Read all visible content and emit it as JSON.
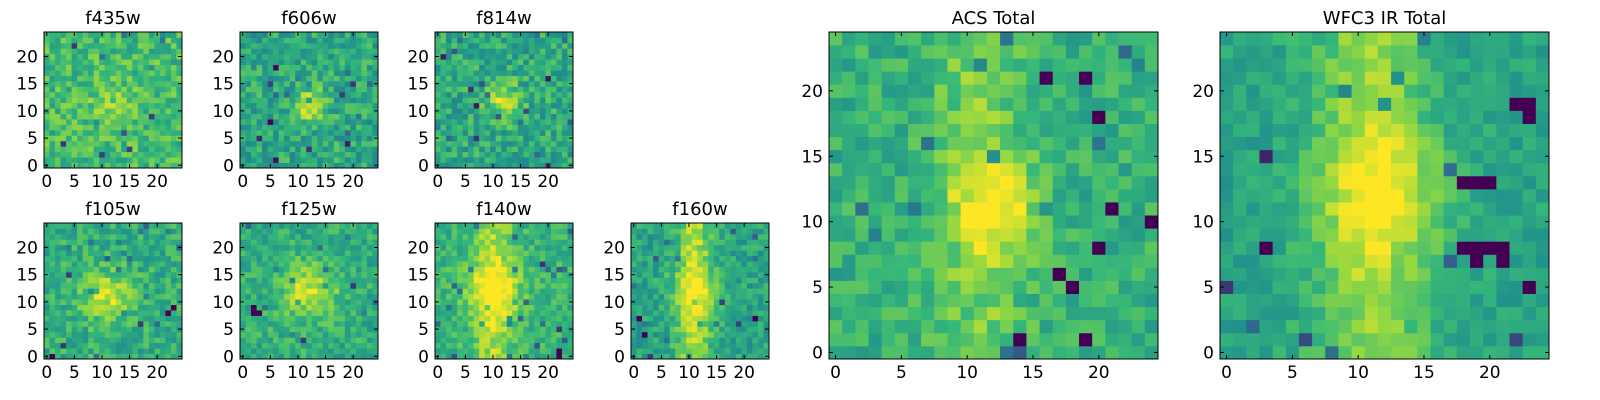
{
  "figure": {
    "colormap": "viridis",
    "colormap_stops": [
      "#440154",
      "#31688e",
      "#21918c",
      "#35b779",
      "#90d743",
      "#fde725"
    ]
  },
  "chart_data": [
    {
      "type": "heatmap",
      "title": "f435w",
      "grid": [
        25,
        25
      ],
      "xticks": [
        "0",
        "5",
        "10",
        "15",
        "20"
      ],
      "yticks": [
        "0",
        "5",
        "10",
        "15",
        "20"
      ],
      "xlim": [
        0,
        25
      ],
      "ylim": [
        0,
        25
      ],
      "seed": 11,
      "peak": {
        "x": 12,
        "y": 11,
        "sigma": 3.0,
        "amp": 0.15
      },
      "streak": null,
      "base": 0.62,
      "noise": 0.17,
      "holes": []
    },
    {
      "type": "heatmap",
      "title": "f606w",
      "grid": [
        25,
        25
      ],
      "xticks": [
        "0",
        "5",
        "10",
        "15",
        "20"
      ],
      "yticks": [
        "0",
        "5",
        "10",
        "15",
        "20"
      ],
      "xlim": [
        0,
        25
      ],
      "ylim": [
        0,
        25
      ],
      "seed": 23,
      "peak": {
        "x": 12,
        "y": 11,
        "sigma": 2.2,
        "amp": 0.35
      },
      "streak": null,
      "base": 0.52,
      "noise": 0.18,
      "holes": []
    },
    {
      "type": "heatmap",
      "title": "f814w",
      "grid": [
        25,
        25
      ],
      "xticks": [
        "0",
        "5",
        "10",
        "15",
        "20"
      ],
      "yticks": [
        "0",
        "5",
        "10",
        "15",
        "20"
      ],
      "xlim": [
        0,
        25
      ],
      "ylim": [
        0,
        25
      ],
      "seed": 37,
      "peak": {
        "x": 12,
        "y": 12,
        "sigma": 2.4,
        "amp": 0.35
      },
      "streak": null,
      "base": 0.52,
      "noise": 0.18,
      "holes": []
    },
    {
      "type": "heatmap",
      "title": "f105w",
      "grid": [
        25,
        25
      ],
      "xticks": [
        "0",
        "5",
        "10",
        "15",
        "20"
      ],
      "yticks": [
        "0",
        "5",
        "10",
        "15",
        "20"
      ],
      "xlim": [
        0,
        25
      ],
      "ylim": [
        0,
        25
      ],
      "seed": 41,
      "peak": {
        "x": 11,
        "y": 11,
        "sigma": 3.2,
        "amp": 0.35
      },
      "streak": null,
      "base": 0.55,
      "noise": 0.15,
      "holes": [
        [
          22,
          8
        ],
        [
          23,
          9
        ],
        [
          1,
          0
        ]
      ]
    },
    {
      "type": "heatmap",
      "title": "f125w",
      "grid": [
        25,
        25
      ],
      "xticks": [
        "0",
        "5",
        "10",
        "15",
        "20"
      ],
      "yticks": [
        "0",
        "5",
        "10",
        "15",
        "20"
      ],
      "xlim": [
        0,
        25
      ],
      "ylim": [
        0,
        25
      ],
      "seed": 53,
      "peak": {
        "x": 12,
        "y": 12,
        "sigma": 3.5,
        "amp": 0.35
      },
      "streak": null,
      "base": 0.55,
      "noise": 0.14,
      "holes": [
        [
          2,
          9
        ],
        [
          3,
          8
        ],
        [
          2,
          8
        ]
      ]
    },
    {
      "type": "heatmap",
      "title": "f140w",
      "grid": [
        25,
        25
      ],
      "xticks": [
        "0",
        "5",
        "10",
        "15",
        "20"
      ],
      "yticks": [
        "0",
        "5",
        "10",
        "15",
        "20"
      ],
      "xlim": [
        0,
        25
      ],
      "ylim": [
        0,
        25
      ],
      "seed": 67,
      "peak": {
        "x": 10,
        "y": 12,
        "sigma": 3.5,
        "amp": 0.35
      },
      "streak": {
        "x": 10,
        "width": 2.5,
        "amp": 0.25
      },
      "base": 0.58,
      "noise": 0.13,
      "holes": [
        [
          22,
          1
        ],
        [
          22,
          0
        ]
      ]
    },
    {
      "type": "heatmap",
      "title": "f160w",
      "grid": [
        25,
        25
      ],
      "xticks": [
        "0",
        "5",
        "10",
        "15",
        "20"
      ],
      "yticks": [
        "0",
        "5",
        "10",
        "15",
        "20"
      ],
      "xlim": [
        0,
        25
      ],
      "ylim": [
        0,
        25
      ],
      "seed": 79,
      "peak": {
        "x": 11,
        "y": 12,
        "sigma": 3.0,
        "amp": 0.25
      },
      "streak": {
        "x": 11,
        "width": 2.2,
        "amp": 0.35
      },
      "base": 0.5,
      "noise": 0.14,
      "holes": [
        [
          1,
          7
        ],
        [
          2,
          4
        ],
        [
          22,
          7
        ]
      ]
    },
    {
      "type": "heatmap",
      "title": "ACS Total",
      "grid": [
        25,
        25
      ],
      "xticks": [
        "0",
        "5",
        "10",
        "15",
        "20"
      ],
      "yticks": [
        "0",
        "5",
        "10",
        "15",
        "20"
      ],
      "xlim": [
        0,
        25
      ],
      "ylim": [
        0,
        25
      ],
      "seed": 97,
      "peak": {
        "x": 12,
        "y": 11,
        "sigma": 2.3,
        "amp": 0.38
      },
      "streak": {
        "x": 11,
        "width": 2.5,
        "amp": 0.18
      },
      "base": 0.56,
      "noise": 0.13,
      "holes": [
        [
          16,
          21
        ],
        [
          19,
          21
        ],
        [
          20,
          18
        ],
        [
          21,
          11
        ],
        [
          24,
          10
        ],
        [
          20,
          8
        ],
        [
          17,
          6
        ],
        [
          18,
          5
        ],
        [
          19,
          1
        ],
        [
          14,
          1
        ]
      ]
    },
    {
      "type": "heatmap",
      "title": "WFC3 IR Total",
      "grid": [
        25,
        25
      ],
      "xticks": [
        "0",
        "5",
        "10",
        "15",
        "20"
      ],
      "yticks": [
        "0",
        "5",
        "10",
        "15",
        "20"
      ],
      "xlim": [
        0,
        25
      ],
      "ylim": [
        0,
        25
      ],
      "seed": 113,
      "peak": {
        "x": 12,
        "y": 12,
        "sigma": 3.2,
        "amp": 0.3
      },
      "streak": {
        "x": 11,
        "width": 3.0,
        "amp": 0.3
      },
      "base": 0.5,
      "noise": 0.1,
      "holes": [
        [
          18,
          13
        ],
        [
          19,
          13
        ],
        [
          20,
          13
        ],
        [
          18,
          8
        ],
        [
          19,
          8
        ],
        [
          20,
          8
        ],
        [
          21,
          8
        ],
        [
          21,
          7
        ],
        [
          19,
          7
        ],
        [
          23,
          19
        ],
        [
          22,
          19
        ],
        [
          23,
          18
        ],
        [
          3,
          8
        ],
        [
          23,
          5
        ]
      ]
    }
  ]
}
